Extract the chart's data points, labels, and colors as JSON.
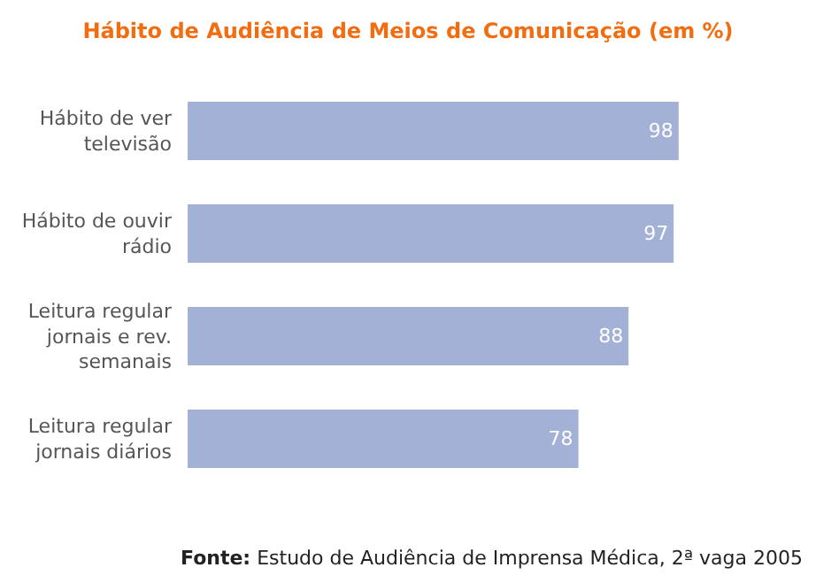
{
  "chart_data": {
    "type": "bar",
    "orientation": "horizontal",
    "title": "Hábito de Audiência de Meios de Comunicação (em %)",
    "categories": [
      "Hábito de ver televisão",
      "Hábito de ouvir rádio",
      "Leitura regular jornais e rev. semanais",
      "Leitura regular jornais diários"
    ],
    "values": [
      98,
      97,
      88,
      78
    ],
    "color": "#a3b1d6",
    "data_labels": true,
    "tick_labels": "y",
    "grid": false,
    "legend": false,
    "annotations": [
      "Fonte: Estudo de Audiência de Imprensa Médica, 2ª vaga 2005"
    ]
  }
}
